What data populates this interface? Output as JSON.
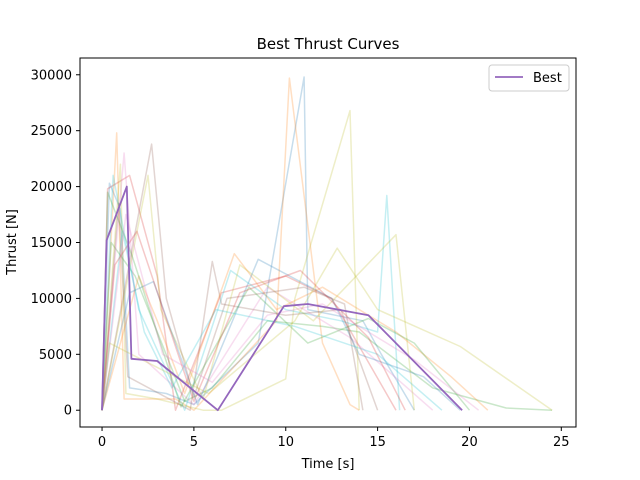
{
  "chart_data": {
    "type": "line",
    "title": "Best Thrust Curves",
    "xlabel": "Time [s]",
    "ylabel": "Thrust [N]",
    "xlim": [
      -1.2,
      25.8
    ],
    "ylim": [
      -1500,
      31500
    ],
    "xticks": [
      0,
      5,
      10,
      15,
      20,
      25
    ],
    "yticks": [
      0,
      5000,
      10000,
      15000,
      20000,
      25000,
      30000
    ],
    "xtick_labels": [
      "0",
      "5",
      "10",
      "15",
      "20",
      "25"
    ],
    "ytick_labels": [
      "0",
      "5000",
      "10000",
      "15000",
      "20000",
      "25000",
      "30000"
    ],
    "legend": {
      "position": "top-right",
      "entries": [
        "Best"
      ]
    },
    "grid": false,
    "highlight_color": "#9467bd",
    "background_series": [
      {
        "color": "#1f77b4",
        "x": [
          0,
          0.4,
          1.0,
          1.5,
          3.5,
          5.0,
          8.5,
          11.0,
          11.2,
          14.2,
          15.2,
          17.0
        ],
        "y": [
          0,
          20300,
          18000,
          2000,
          1500,
          500,
          6000,
          29800,
          9000,
          8000,
          5000,
          0
        ]
      },
      {
        "color": "#ff7f0e",
        "x": [
          0,
          0.8,
          1.2,
          4.0,
          5.0,
          9.5,
          10.2,
          12.0,
          13.5,
          14.0
        ],
        "y": [
          0,
          24800,
          1000,
          1000,
          0,
          8000,
          29700,
          6000,
          500,
          0
        ]
      },
      {
        "color": "#2ca02c",
        "x": [
          0,
          0.5,
          1.8,
          4.5,
          6.0,
          9.0,
          12.0,
          14.0,
          18.0,
          22.0,
          24.5
        ],
        "y": [
          0,
          15000,
          12000,
          800,
          2000,
          8000,
          7500,
          7000,
          2000,
          200,
          0
        ]
      },
      {
        "color": "#d62728",
        "x": [
          0,
          0.3,
          1.5,
          3.0,
          4.0,
          6.5,
          10.0,
          12.5,
          16.0
        ],
        "y": [
          0,
          19800,
          21000,
          12000,
          0,
          10500,
          12000,
          10000,
          0
        ]
      },
      {
        "color": "#bcbd22",
        "x": [
          0,
          1.0,
          1.3,
          3.0,
          5.5,
          6.5,
          10.0,
          10.5,
          13.5,
          14.0
        ],
        "y": [
          0,
          22000,
          1500,
          1000,
          0,
          0,
          2800,
          10000,
          26800,
          0
        ]
      },
      {
        "color": "#17becf",
        "x": [
          0,
          0.6,
          2.0,
          4.5,
          7.0,
          10.0,
          13.0,
          15.0,
          15.5,
          16.2
        ],
        "y": [
          0,
          21000,
          9000,
          0,
          12500,
          9000,
          8000,
          7000,
          19200,
          0
        ]
      },
      {
        "color": "#e377c2",
        "x": [
          0,
          1.2,
          2.0,
          5.0,
          9.0,
          11.0,
          13.5,
          18.0
        ],
        "y": [
          0,
          23000,
          5000,
          500,
          11000,
          9000,
          6500,
          0
        ]
      },
      {
        "color": "#8c564b",
        "x": [
          0,
          0.9,
          1.4,
          4.8,
          6.0,
          6.5,
          10.0,
          13.0,
          15.0
        ],
        "y": [
          0,
          18500,
          3000,
          0,
          13300,
          9500,
          8500,
          9000,
          0
        ]
      },
      {
        "color": "#bcbd22",
        "x": [
          0,
          2.5,
          3.2,
          5.5,
          7.5,
          11.5,
          16.0,
          17.0
        ],
        "y": [
          0,
          21000,
          9000,
          1000,
          13000,
          8000,
          15700,
          0
        ]
      },
      {
        "color": "#ff7f0e",
        "x": [
          0,
          2.0,
          3.0,
          4.5,
          7.2,
          9.5,
          12.0,
          16.0,
          19.0,
          21.0
        ],
        "y": [
          0,
          12000,
          8000,
          1500,
          14000,
          9000,
          11000,
          7000,
          3000,
          0
        ]
      },
      {
        "color": "#1f77b4",
        "x": [
          0,
          1.5,
          2.8,
          5.2,
          8.5,
          12.5,
          14.0,
          17.5,
          19.5
        ],
        "y": [
          0,
          10500,
          11500,
          500,
          13500,
          10000,
          5000,
          3000,
          0
        ]
      },
      {
        "color": "#8c564b",
        "x": [
          0,
          2.7,
          3.5,
          5.0,
          6.8,
          11.0,
          13.2,
          14.2
        ],
        "y": [
          0,
          23800,
          10000,
          1200,
          10000,
          11000,
          9500,
          0
        ]
      },
      {
        "color": "#2ca02c",
        "x": [
          0,
          0.3,
          1.6,
          4.3,
          8.0,
          11.2,
          14.5,
          17.0,
          20.0
        ],
        "y": [
          0,
          19500,
          14000,
          300,
          11000,
          6000,
          8200,
          6000,
          0
        ]
      },
      {
        "color": "#17becf",
        "x": [
          0,
          1.1,
          2.3,
          3.8,
          6.2,
          10.5,
          15.0,
          18.5
        ],
        "y": [
          0,
          16000,
          7000,
          2000,
          9000,
          7500,
          5000,
          0
        ]
      },
      {
        "color": "#d62728",
        "x": [
          0,
          0.7,
          1.9,
          5.0,
          7.5,
          10.8,
          14.5,
          16.5
        ],
        "y": [
          0,
          13000,
          16000,
          800,
          10500,
          12500,
          6500,
          0
        ]
      },
      {
        "color": "#e377c2",
        "x": [
          0,
          1.3,
          3.3,
          6.0,
          9.0,
          12.0,
          17.0,
          20.5
        ],
        "y": [
          0,
          17500,
          5000,
          2500,
          8500,
          9500,
          4500,
          0
        ]
      },
      {
        "color": "#bcbd22",
        "x": [
          0,
          0.4,
          2.2,
          5.8,
          10.5,
          12.8,
          15.0,
          19.5,
          24.5
        ],
        "y": [
          0,
          6000,
          4500,
          1500,
          8000,
          14500,
          9000,
          5700,
          0
        ]
      }
    ],
    "series": [
      {
        "name": "Best",
        "color": "#9467bd",
        "x": [
          0,
          0.25,
          1.35,
          1.6,
          3.0,
          6.3,
          9.9,
          11.2,
          14.5,
          19.6
        ],
        "y": [
          0,
          15200,
          20000,
          4600,
          4400,
          0,
          9300,
          9500,
          8500,
          0
        ]
      }
    ]
  }
}
